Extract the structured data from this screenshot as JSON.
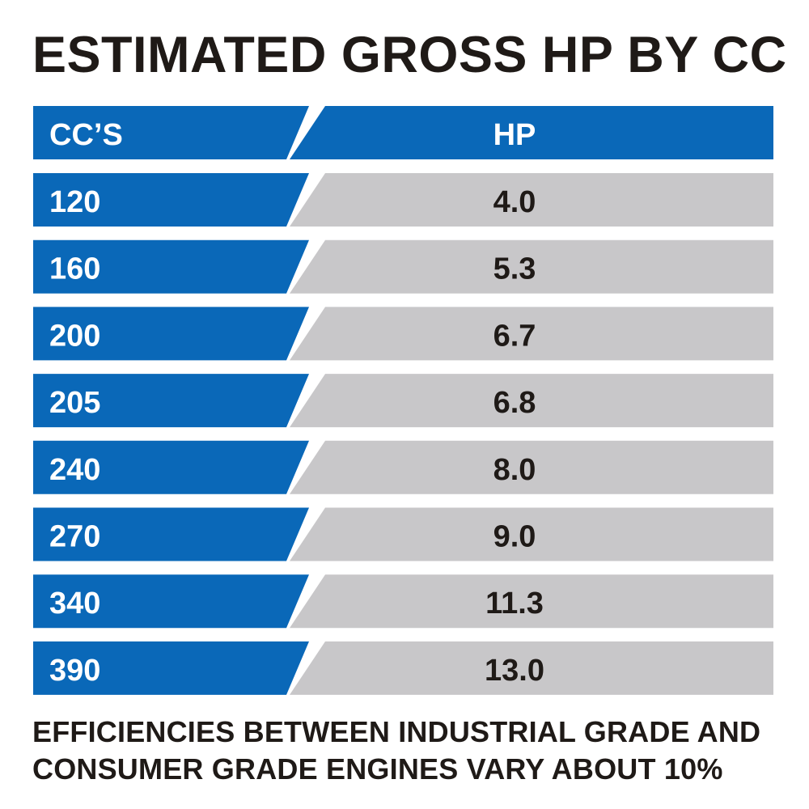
{
  "title": "ESTIMATED GROSS HP BY CC",
  "colors": {
    "accent_blue": "#0a68b8",
    "value_gray": "#c8c7c9",
    "header_text": "#ffffff",
    "value_text": "#1f1a17",
    "title_text": "#1f1a17"
  },
  "chart_data": {
    "type": "table",
    "title": "ESTIMATED GROSS HP BY CC",
    "columns": [
      "CC’S",
      "HP"
    ],
    "rows": [
      {
        "cc": "120",
        "hp": "4.0"
      },
      {
        "cc": "160",
        "hp": "5.3"
      },
      {
        "cc": "200",
        "hp": "6.7"
      },
      {
        "cc": "205",
        "hp": "6.8"
      },
      {
        "cc": "240",
        "hp": "8.0"
      },
      {
        "cc": "270",
        "hp": "9.0"
      },
      {
        "cc": "340",
        "hp": "11.3"
      },
      {
        "cc": "390",
        "hp": "13.0"
      }
    ]
  },
  "footnote": {
    "line1": "EFFICIENCIES BETWEEN INDUSTRIAL GRADE AND",
    "line2": "CONSUMER GRADE ENGINES VARY ABOUT 10%"
  }
}
